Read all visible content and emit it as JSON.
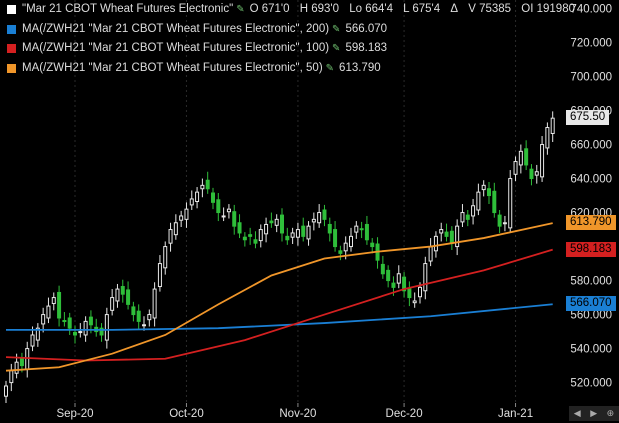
{
  "legend": [
    {
      "label": "\"Mar 21 CBOT Wheat Futures Electronic\"",
      "value": "",
      "color": "#ffffff",
      "ohlc": [
        "O 671'0",
        "H 693'0",
        "Lo 664'4",
        "L 675'4",
        "Δ",
        "V 75385",
        "OI 191980"
      ]
    },
    {
      "label": "MA(/ZWH21 \"Mar 21 CBOT Wheat Futures Electronic\", 200)",
      "value": "566.070",
      "color": "#1a7fd4"
    },
    {
      "label": "MA(/ZWH21 \"Mar 21 CBOT Wheat Futures Electronic\", 100)",
      "value": "598.183",
      "color": "#d42020"
    },
    {
      "label": "MA(/ZWH21 \"Mar 21 CBOT Wheat Futures Electronic\", 50)",
      "value": "613.790",
      "color": "#f0962a"
    }
  ],
  "tags": {
    "last": {
      "text": "675.50",
      "bg": "#e8e8e8"
    },
    "ma50": {
      "text": "613.790",
      "bg": "#f0962a"
    },
    "ma100": {
      "text": "598.183",
      "bg": "#d42020"
    },
    "ma200": {
      "text": "566.070",
      "bg": "#1a7fd4"
    }
  },
  "nav": {
    "icons": [
      "back-icon",
      "forward-icon",
      "zoom-icon"
    ]
  },
  "chart_data": {
    "type": "candlestick",
    "ylim": [
      508,
      745
    ],
    "yticks": [
      520,
      540,
      560,
      580,
      600,
      620,
      640,
      660,
      680,
      700,
      720,
      740
    ],
    "ytick_labels": [
      "520.000",
      "540.000",
      "560.000",
      "580.000",
      "600.000",
      "620.000",
      "640.000",
      "660.000",
      "680.000",
      "700.000",
      "720.000",
      "740.000"
    ],
    "xticks": [
      {
        "label": "Sep-20",
        "index": 13
      },
      {
        "label": "Oct-20",
        "index": 34
      },
      {
        "label": "Nov-20",
        "index": 55
      },
      {
        "label": "Dec-20",
        "index": 75
      },
      {
        "label": "Jan-21",
        "index": 96
      }
    ],
    "close": [
      518,
      527,
      532,
      530,
      540,
      548,
      552,
      560,
      565,
      570,
      558,
      556,
      552,
      548,
      550,
      556,
      554,
      550,
      548,
      560,
      570,
      575,
      572,
      566,
      560,
      556,
      554,
      560,
      575,
      590,
      600,
      610,
      614,
      618,
      622,
      628,
      632,
      636,
      634,
      626,
      620,
      618,
      622,
      612,
      608,
      604,
      606,
      602,
      610,
      613,
      614,
      616,
      608,
      604,
      608,
      610,
      606,
      612,
      616,
      620,
      616,
      608,
      600,
      596,
      602,
      606,
      612,
      610,
      604,
      600,
      592,
      584,
      580,
      576,
      584,
      574,
      570,
      568,
      576,
      590,
      600,
      606,
      610,
      606,
      602,
      612,
      620,
      616,
      624,
      632,
      636,
      630,
      620,
      612,
      614,
      640,
      650,
      656,
      648,
      640,
      644,
      660,
      670,
      675.5
    ],
    "open_offsets": [
      -6,
      4,
      -3,
      5,
      -4,
      3,
      -6,
      5,
      -4,
      3,
      6,
      -3,
      4,
      -5,
      3,
      -4,
      5,
      -3,
      4,
      -6,
      5,
      -4,
      3,
      5,
      -3,
      4,
      -5,
      6,
      -4,
      3,
      -5,
      4,
      -6,
      3,
      -4,
      5,
      -3,
      4,
      6,
      -5,
      3,
      -4,
      5,
      -3,
      4,
      -5,
      6,
      -4,
      3,
      -5,
      4,
      -3,
      5,
      -4,
      3,
      -5,
      4,
      -3,
      5,
      -4,
      3,
      -6,
      4,
      -5,
      3,
      -4,
      5,
      -3,
      6,
      -4,
      3,
      -5,
      4,
      -3,
      5,
      -4,
      3,
      -6,
      5,
      -4,
      3,
      -5,
      4,
      -3,
      6,
      -4,
      5,
      -3,
      4,
      -5,
      3,
      -4,
      5,
      -3,
      4,
      -6,
      5,
      -4,
      3,
      -5,
      4,
      -6,
      -4,
      -7
    ],
    "series": [
      {
        "name": "MA 200",
        "color": "#1a7fd4",
        "x": [
          0,
          20,
          40,
          60,
          80,
          103
        ],
        "values": [
          551,
          551,
          552,
          555,
          559,
          566.07
        ]
      },
      {
        "name": "MA 100",
        "color": "#d42020",
        "x": [
          0,
          15,
          30,
          45,
          60,
          75,
          90,
          103
        ],
        "values": [
          535,
          533,
          534,
          545,
          560,
          575,
          586,
          598.183
        ]
      },
      {
        "name": "MA 50",
        "color": "#f0962a",
        "x": [
          0,
          10,
          20,
          30,
          40,
          50,
          60,
          70,
          80,
          90,
          103
        ],
        "values": [
          527,
          529,
          537,
          548,
          566,
          583,
          593,
          597,
          600,
          605,
          613.79
        ]
      }
    ]
  }
}
